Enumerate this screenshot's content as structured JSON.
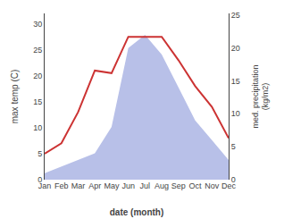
{
  "chart_data": {
    "type": "line",
    "categories": [
      "Jan",
      "Feb",
      "Mar",
      "Apr",
      "May",
      "Jun",
      "Jul",
      "Aug",
      "Sep",
      "Oct",
      "Nov",
      "Dec"
    ],
    "series": [
      {
        "type": "area",
        "axis": "y2",
        "color": "#b8c0e8",
        "values": [
          1,
          2,
          3,
          4,
          8,
          20,
          22,
          19,
          14,
          9,
          6,
          3
        ]
      },
      {
        "type": "line",
        "color": "#cc3333",
        "values": [
          5,
          7,
          13,
          21,
          20.5,
          27.5,
          27.5,
          27.5,
          23,
          18,
          14,
          8
        ]
      }
    ],
    "xlabel": "date (month)",
    "ylabel": "max temp (C)",
    "y2label": "med. precipitation\n(kg/m2)",
    "ylim": [
      0,
      32
    ],
    "yticks": [
      0,
      5,
      10,
      15,
      20,
      25,
      30
    ],
    "y2lim": [
      0,
      25.25
    ],
    "y2ticks": [
      0,
      5,
      10,
      15,
      20,
      25
    ],
    "grid": false
  }
}
